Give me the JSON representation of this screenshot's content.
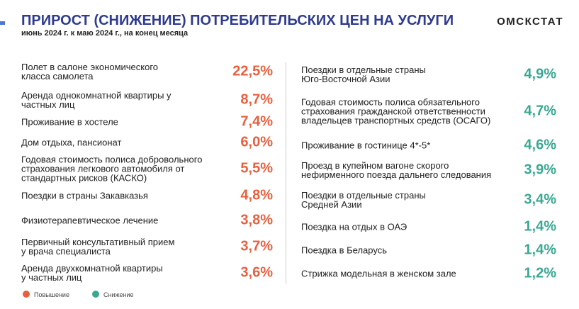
{
  "header": {
    "title": "ПРИРОСТ (СНИЖЕНИЕ) ПОТРЕБИТЕЛЬСКИХ ЦЕН НА УСЛУГИ",
    "subtitle": "июнь 2024 г. к маю 2024 г., на конец месяца",
    "brand": "ОМСКСТАТ"
  },
  "left": {
    "items": [
      {
        "label": "Полет в салоне экономического\nкласса самолета",
        "value": "22,5%"
      },
      {
        "label": "Аренда однокомнатной квартиры у\nчастных лиц",
        "value": "8,7%"
      },
      {
        "label": "Проживание в хостеле",
        "value": "7,4%"
      },
      {
        "label": "Дом отдыха, пансионат",
        "value": "6,0%"
      },
      {
        "label": "Годовая стоимость полиса добровольного\nстрахования легкового автомобиля от\nстандартных рисков (КАСКО)",
        "value": "5,5%"
      },
      {
        "label": "Поездки в страны Закавказья",
        "value": "4,8%"
      },
      {
        "label": "Физиотерапевтическое лечение",
        "value": "3,8%"
      },
      {
        "label": "Первичный консультативный прием\nу врача специалиста",
        "value": "3,7%"
      },
      {
        "label": "Аренда двухкомнатной квартиры\nу частных лиц",
        "value": "3,6%"
      }
    ]
  },
  "right": {
    "items": [
      {
        "label": "Поездки в отдельные страны\nЮго-Восточной Азии",
        "value": "4,9%"
      },
      {
        "label": "Годовая стоимость полиса обязательного\nстрахования гражданской ответственности\nвладельцев транспортных средств (ОСАГО)",
        "value": "4,7%"
      },
      {
        "label": "Проживание в гостинице 4*-5*",
        "value": "4,6%"
      },
      {
        "label": "Проезд в купейном вагоне скорого\nнефирменного поезда дальнего следования",
        "value": "3,9%"
      },
      {
        "label": "Поездки в отдельные страны\nСредней Азии",
        "value": "3,4%"
      },
      {
        "label": "Поездка на отдых в ОАЭ",
        "value": "1,4%"
      },
      {
        "label": "Поездка в Беларусь",
        "value": "1,4%"
      },
      {
        "label": "Стрижка модельная в женском зале",
        "value": "1,2%"
      }
    ]
  },
  "legend": {
    "increase": "Повышение",
    "decrease": "Снижение"
  }
}
